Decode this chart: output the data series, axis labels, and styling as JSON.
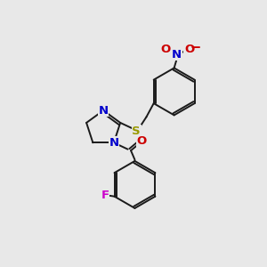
{
  "bg_color": "#e8e8e8",
  "bond_color": "#1a1a1a",
  "bond_width": 1.4,
  "atom_colors": {
    "N": "#0000cc",
    "O": "#cc0000",
    "S": "#999900",
    "F": "#cc00cc",
    "C": "#1a1a1a"
  },
  "font_size": 9.5,
  "figsize": [
    3.0,
    3.0
  ],
  "dpi": 100
}
